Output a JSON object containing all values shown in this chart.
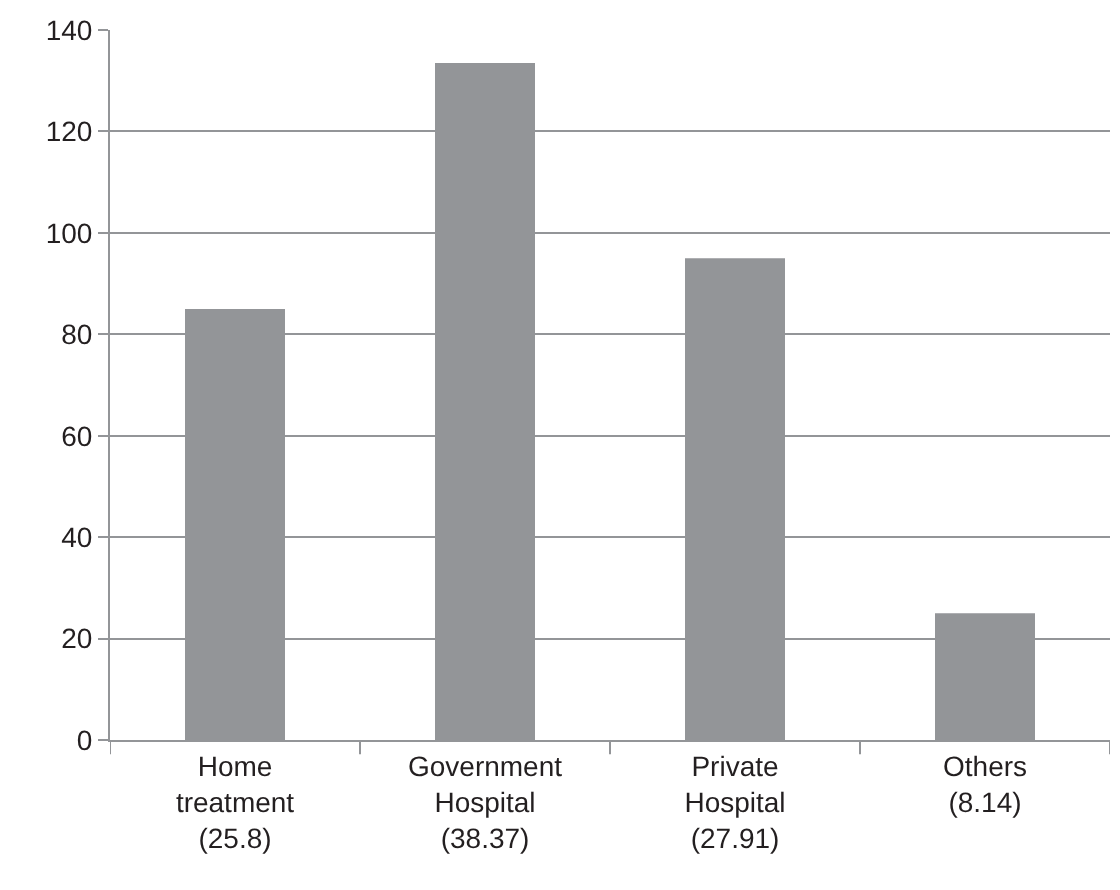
{
  "chart_data": {
    "type": "bar",
    "categories": [
      "Home\ntreatment\n(25.8)",
      "Government\nHospital\n(38.37)",
      "Private\nHospital\n(27.91)",
      "Others\n(8.14)"
    ],
    "values": [
      85,
      133.5,
      95,
      25
    ],
    "color": "#939598",
    "ylim": [
      0,
      140
    ],
    "yticks": [
      0,
      20,
      40,
      60,
      80,
      100,
      120,
      140
    ],
    "grid": "y",
    "legend": false
  }
}
